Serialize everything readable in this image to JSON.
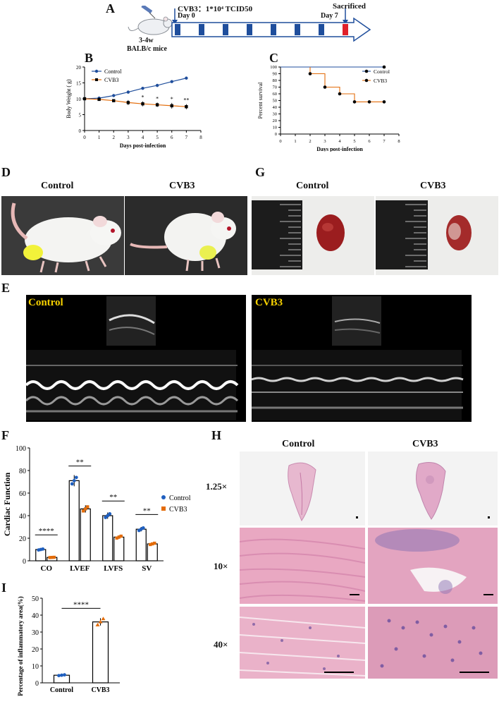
{
  "panels": {
    "A": {
      "label": "A",
      "virus_dose": "CVB3：1*10⁴ TCID50",
      "mice_age": "3-4w",
      "mice_strain": "BALB/c mice",
      "day0": "Day 0",
      "day7": "Day 7",
      "sacrificed": "Sacrificed"
    },
    "B": {
      "label": "B"
    },
    "C": {
      "label": "C"
    },
    "D": {
      "label": "D",
      "control": "Control",
      "cvb3": "CVB3"
    },
    "G": {
      "label": "G",
      "control": "Control",
      "cvb3": "CVB3"
    },
    "E": {
      "label": "E",
      "control": "Control",
      "cvb3": "CVB3"
    },
    "F": {
      "label": "F"
    },
    "H": {
      "label": "H",
      "col_control": "Control",
      "col_cvb3": "CVB3",
      "rows": [
        "1.25×",
        "10×",
        "40×"
      ]
    },
    "I": {
      "label": "I"
    }
  },
  "chart_data": [
    {
      "id": "B",
      "type": "line",
      "xlabel": "Days post-infection",
      "ylabel": "Body Weight ( g)",
      "xlim": [
        0,
        8
      ],
      "ylim": [
        0,
        20
      ],
      "xticks": [
        0,
        1,
        2,
        3,
        4,
        5,
        6,
        7,
        8
      ],
      "yticks": [
        0,
        5,
        10,
        15,
        20
      ],
      "series": [
        {
          "name": "Control",
          "color": "#1f4e9c",
          "marker": "circle",
          "x": [
            0,
            1,
            2,
            3,
            4,
            5,
            6,
            7
          ],
          "y": [
            10,
            10.2,
            11.0,
            12.1,
            13.3,
            14.2,
            15.4,
            16.5
          ],
          "err": [
            0.2,
            0.2,
            0.3,
            0.5,
            0.4,
            0.5,
            0.4,
            0.3
          ]
        },
        {
          "name": "CVB3",
          "color": "#e36c0a",
          "marker": "square",
          "x": [
            0,
            1,
            2,
            3,
            4,
            5,
            6,
            7
          ],
          "y": [
            10,
            9.8,
            9.4,
            8.8,
            8.4,
            8.1,
            7.8,
            7.5
          ],
          "err": [
            0.2,
            0.3,
            0.3,
            0.8,
            0.8,
            0.7,
            0.9,
            0.8
          ]
        }
      ],
      "annotations": [
        {
          "x": 4,
          "text": "*"
        },
        {
          "x": 5,
          "text": "*"
        },
        {
          "x": 6,
          "text": "*"
        },
        {
          "x": 7,
          "text": "**"
        }
      ],
      "legend": "top-left"
    },
    {
      "id": "C",
      "type": "line",
      "xlabel": "Days post-infection",
      "ylabel": "Percent survival",
      "xlim": [
        0,
        8
      ],
      "ylim": [
        0,
        100
      ],
      "xticks": [
        0,
        1,
        2,
        3,
        4,
        5,
        6,
        7,
        8
      ],
      "yticks": [
        0,
        10,
        20,
        30,
        40,
        50,
        60,
        70,
        80,
        90,
        100
      ],
      "series": [
        {
          "name": "Control",
          "color": "#1f4e9c",
          "steps": [
            [
              0,
              100
            ],
            [
              7,
              100
            ]
          ],
          "points": [
            [
              7,
              100
            ]
          ]
        },
        {
          "name": "CVB3",
          "color": "#e36c0a",
          "steps": [
            [
              2,
              100
            ],
            [
              2,
              90
            ],
            [
              3,
              90
            ],
            [
              3,
              70
            ],
            [
              4,
              70
            ],
            [
              4,
              60
            ],
            [
              5,
              60
            ],
            [
              5,
              48
            ],
            [
              7,
              48
            ]
          ],
          "points": [
            [
              2,
              90
            ],
            [
              3,
              70
            ],
            [
              4,
              60
            ],
            [
              5,
              48
            ],
            [
              6,
              48
            ],
            [
              7,
              48
            ]
          ]
        }
      ],
      "legend": "top-right"
    },
    {
      "id": "F",
      "type": "bar",
      "ylabel": "Cardiac Function",
      "ylim": [
        0,
        100
      ],
      "yticks": [
        0,
        20,
        40,
        60,
        80,
        100
      ],
      "categories": [
        "CO",
        "LVEF",
        "LVFS",
        "SV"
      ],
      "series": [
        {
          "name": "Control",
          "color": "#1f5fbf",
          "values": [
            10,
            71,
            40,
            28
          ]
        },
        {
          "name": "CVB3",
          "color": "#e36c0a",
          "values": [
            3,
            46,
            21,
            15
          ]
        }
      ],
      "significance": [
        "****",
        "**",
        "**",
        "**"
      ],
      "legend": "right"
    },
    {
      "id": "I",
      "type": "bar",
      "ylabel": "Percentage of inflammatory area(%)",
      "ylim": [
        0,
        50
      ],
      "yticks": [
        0,
        10,
        20,
        30,
        40,
        50
      ],
      "categories": [
        "Control",
        "CVB3"
      ],
      "values": [
        4.5,
        36
      ],
      "colors": [
        "#1f5fbf",
        "#e36c0a"
      ],
      "significance": "****"
    }
  ]
}
